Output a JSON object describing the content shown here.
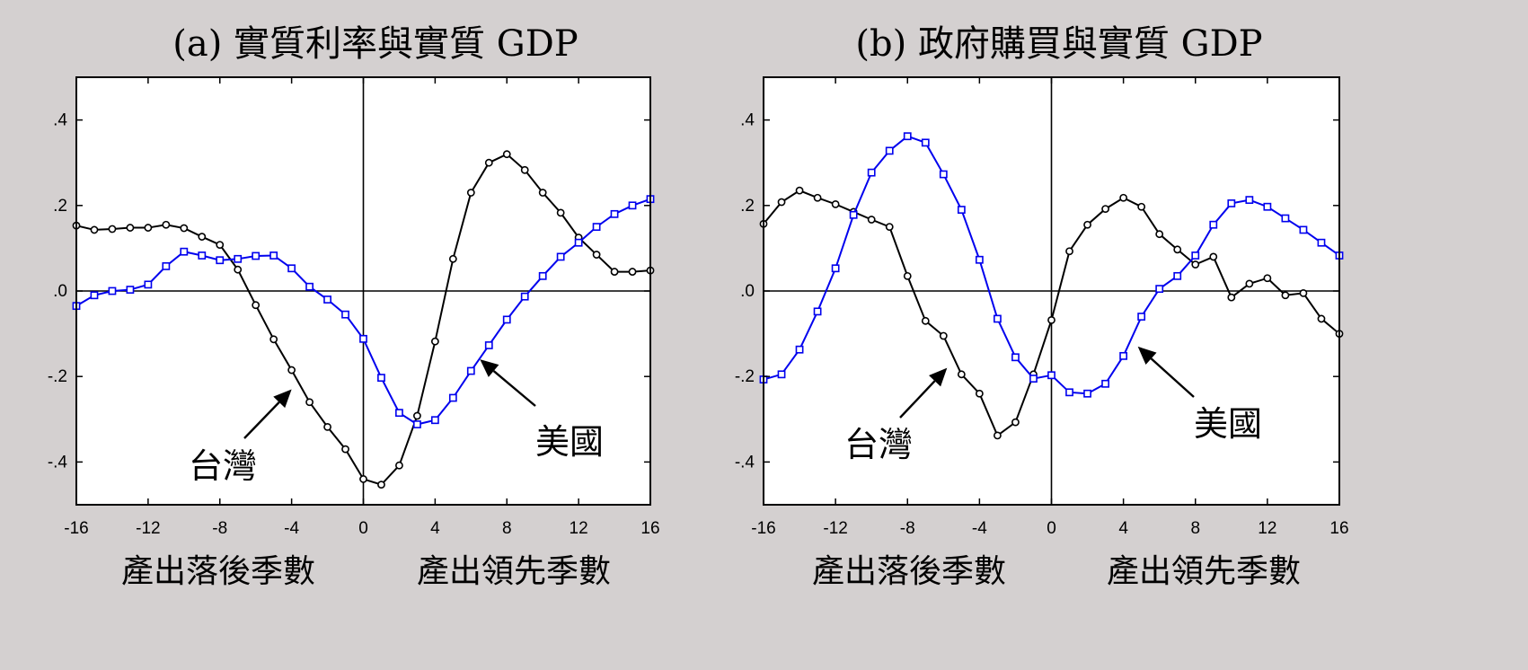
{
  "chart_data": [
    {
      "type": "line",
      "title": "(a) 實質利率與實質 GDP",
      "xlim": [
        -16,
        16
      ],
      "ylim": [
        -0.5,
        0.5
      ],
      "xticks": [
        -16,
        -12,
        -8,
        -4,
        0,
        4,
        8,
        12,
        16
      ],
      "xtick_labels": [
        "-16",
        "-12",
        "-8",
        "-4",
        "0",
        "4",
        "8",
        "12",
        "16"
      ],
      "yticks": [
        0.4,
        0.2,
        0.0,
        -0.2,
        -0.4
      ],
      "ytick_labels": [
        ".4",
        ".2",
        ".0",
        "-.2",
        "-.4"
      ],
      "xlabel_left": "產出落後季數",
      "xlabel_right": "產出領先季數",
      "grid": false,
      "x": [
        -16,
        -15,
        -14,
        -13,
        -12,
        -11,
        -10,
        -9,
        -8,
        -7,
        -6,
        -5,
        -4,
        -3,
        -2,
        -1,
        0,
        1,
        2,
        3,
        4,
        5,
        6,
        7,
        8,
        9,
        10,
        11,
        12,
        13,
        14,
        15,
        16
      ],
      "series": [
        {
          "name": "台灣",
          "color": "#000000",
          "marker": "circle",
          "values": [
            0.153,
            0.143,
            0.145,
            0.148,
            0.148,
            0.155,
            0.147,
            0.127,
            0.108,
            0.05,
            -0.033,
            -0.113,
            -0.185,
            -0.26,
            -0.318,
            -0.37,
            -0.44,
            -0.453,
            -0.408,
            -0.292,
            -0.118,
            0.075,
            0.23,
            0.3,
            0.32,
            0.283,
            0.23,
            0.183,
            0.125,
            0.085,
            0.045,
            0.045,
            0.048
          ]
        },
        {
          "name": "美國",
          "color": "#0000ee",
          "marker": "square",
          "values": [
            -0.035,
            -0.01,
            0.0,
            0.003,
            0.015,
            0.058,
            0.092,
            0.083,
            0.072,
            0.075,
            0.082,
            0.083,
            0.053,
            0.01,
            -0.02,
            -0.055,
            -0.112,
            -0.203,
            -0.285,
            -0.312,
            -0.302,
            -0.25,
            -0.187,
            -0.127,
            -0.067,
            -0.013,
            0.035,
            0.08,
            0.113,
            0.15,
            0.18,
            0.2,
            0.215
          ]
        }
      ],
      "annotations": [
        {
          "text": "台灣",
          "points_to": [
            -4,
            -0.23
          ]
        },
        {
          "text": "美國",
          "points_to": [
            6.5,
            -0.16
          ]
        }
      ]
    },
    {
      "type": "line",
      "title": "(b) 政府購買與實質 GDP",
      "xlim": [
        -16,
        16
      ],
      "ylim": [
        -0.5,
        0.5
      ],
      "xticks": [
        -16,
        -12,
        -8,
        -4,
        0,
        4,
        8,
        12,
        16
      ],
      "xtick_labels": [
        "-16",
        "-12",
        "-8",
        "-4",
        "0",
        "4",
        "8",
        "12",
        "16"
      ],
      "yticks": [
        0.4,
        0.2,
        0.0,
        -0.2,
        -0.4
      ],
      "ytick_labels": [
        ".4",
        ".2",
        ".0",
        "-.2",
        "-.4"
      ],
      "xlabel_left": "產出落後季數",
      "xlabel_right": "產出領先季數",
      "grid": false,
      "x": [
        -16,
        -15,
        -14,
        -13,
        -12,
        -11,
        -10,
        -9,
        -8,
        -7,
        -6,
        -5,
        -4,
        -3,
        -2,
        -1,
        0,
        1,
        2,
        3,
        4,
        5,
        6,
        7,
        8,
        9,
        10,
        11,
        12,
        13,
        14,
        15,
        16
      ],
      "series": [
        {
          "name": "台灣",
          "color": "#000000",
          "marker": "circle",
          "values": [
            0.157,
            0.208,
            0.235,
            0.218,
            0.203,
            0.185,
            0.167,
            0.15,
            0.035,
            -0.07,
            -0.105,
            -0.195,
            -0.24,
            -0.338,
            -0.307,
            -0.195,
            -0.068,
            0.093,
            0.155,
            0.192,
            0.218,
            0.197,
            0.133,
            0.097,
            0.062,
            0.08,
            -0.015,
            0.017,
            0.03,
            -0.01,
            -0.005,
            -0.065,
            -0.1
          ]
        },
        {
          "name": "美國",
          "color": "#0000ee",
          "marker": "square",
          "values": [
            -0.207,
            -0.195,
            -0.137,
            -0.048,
            0.053,
            0.178,
            0.277,
            0.328,
            0.362,
            0.347,
            0.273,
            0.19,
            0.073,
            -0.065,
            -0.155,
            -0.205,
            -0.197,
            -0.237,
            -0.24,
            -0.217,
            -0.152,
            -0.06,
            0.005,
            0.035,
            0.083,
            0.155,
            0.205,
            0.213,
            0.197,
            0.17,
            0.143,
            0.113,
            0.083
          ]
        }
      ],
      "annotations": [
        {
          "text": "台灣",
          "points_to": [
            -5.8,
            -0.18
          ]
        },
        {
          "text": "美國",
          "points_to": [
            4.8,
            -0.13
          ]
        }
      ]
    }
  ]
}
